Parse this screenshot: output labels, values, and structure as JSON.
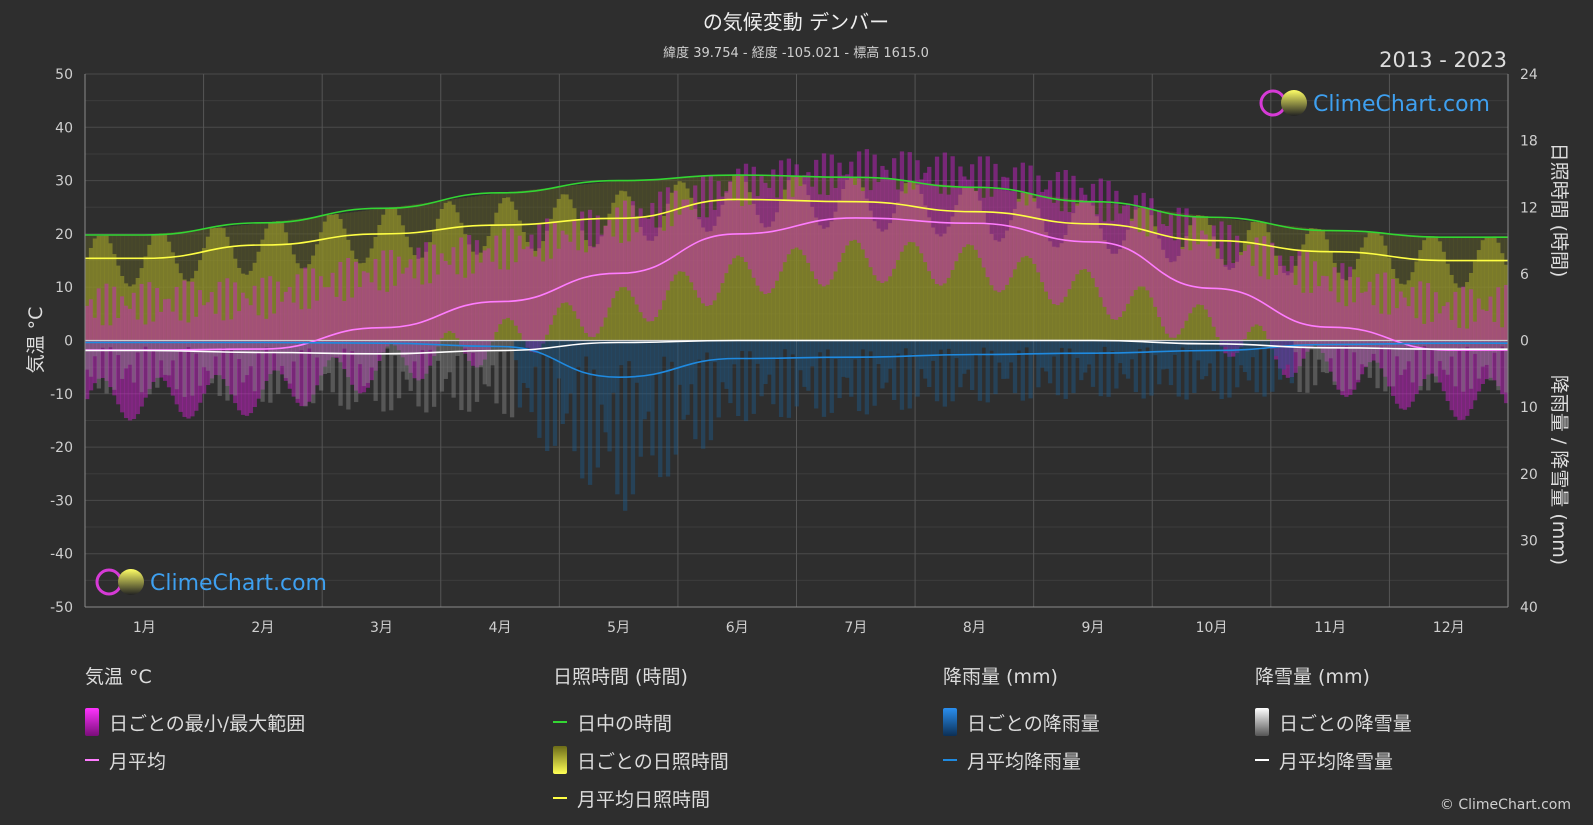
{
  "header": {
    "title": "の気候変動 デンバー",
    "subtitle": "緯度 39.754 - 経度 -105.021 - 標高 1615.0",
    "years": "2013 - 2023"
  },
  "watermark": "ClimeChart.com",
  "copyright": "© ClimeChart.com",
  "colors": {
    "background": "#2e2e2e",
    "temp_range": "#d21ed2",
    "temp_mean": "#ff7cff",
    "daylight": "#33d633",
    "sunshine_fill": "#9e9e2a",
    "sunshine_mean": "#ffff44",
    "rain": "#1f8ae0",
    "rain_mean": "#1f8ae0",
    "snow": "#bdbdbd",
    "snow_mean": "#ffffff",
    "logo_text": "#3ea0f0"
  },
  "legend": {
    "temp": {
      "title": "気温 °C",
      "range_label": "日ごとの最小/最大範囲",
      "mean_label": "月平均"
    },
    "sun": {
      "title": "日照時間 (時間)",
      "daylight_label": "日中の時間",
      "daily_label": "日ごとの日照時間",
      "mean_label": "月平均日照時間"
    },
    "rain": {
      "title": "降雨量 (mm)",
      "daily_label": "日ごとの降雨量",
      "mean_label": "月平均降雨量"
    },
    "snow": {
      "title": "降雪量 (mm)",
      "daily_label": "日ごとの降雪量",
      "mean_label": "月平均降雪量"
    }
  },
  "chart_data": {
    "type": "area",
    "months": [
      "1月",
      "2月",
      "3月",
      "4月",
      "5月",
      "6月",
      "7月",
      "8月",
      "9月",
      "10月",
      "11月",
      "12月"
    ],
    "left_axis": {
      "label": "気温 °C",
      "range": [
        -50,
        50
      ],
      "ticks": [
        50,
        40,
        30,
        20,
        10,
        0,
        -10,
        -20,
        -30,
        -40,
        -50
      ]
    },
    "right_axis_top": {
      "label": "日照時間 (時間)",
      "range": [
        0,
        24
      ],
      "ticks": [
        24,
        18,
        12,
        6,
        0
      ]
    },
    "right_axis_bottom": {
      "label": "降雨量 / 降雪量 (mm)",
      "range": [
        0,
        40
      ],
      "ticks": [
        10,
        20,
        30,
        40
      ]
    },
    "grid": true,
    "series": [
      {
        "name": "日中の時間",
        "axis": "hours",
        "values": [
          9.5,
          10.6,
          11.9,
          13.3,
          14.4,
          14.9,
          14.7,
          13.8,
          12.5,
          11.1,
          9.9,
          9.3
        ]
      },
      {
        "name": "月平均日照時間",
        "axis": "hours",
        "values": [
          7.4,
          8.6,
          9.6,
          10.4,
          11.0,
          12.7,
          12.5,
          11.6,
          10.5,
          9.0,
          8.0,
          7.2
        ]
      },
      {
        "name": "月平均",
        "axis": "temp",
        "values": [
          -1.8,
          -1.6,
          2.4,
          7.3,
          12.6,
          20.0,
          23.0,
          22.0,
          18.5,
          9.8,
          2.5,
          -1.8
        ]
      },
      {
        "name": "月平均降雨量",
        "axis": "precip",
        "values": [
          0.3,
          0.3,
          0.4,
          0.9,
          5.5,
          2.7,
          2.5,
          2.1,
          1.9,
          1.5,
          0.6,
          0.4
        ]
      },
      {
        "name": "月平均降雪量",
        "axis": "precip",
        "values": [
          1.5,
          1.8,
          2.0,
          1.5,
          0.3,
          0.0,
          0.0,
          0.0,
          0.0,
          0.5,
          1.1,
          1.3
        ]
      }
    ],
    "daily_temp_range": {
      "max": [
        7,
        8,
        13,
        17,
        22,
        29,
        32,
        31,
        27,
        19,
        11,
        6
      ],
      "min": [
        -11,
        -10,
        -5,
        0,
        6,
        12,
        15,
        14,
        9,
        2,
        -6,
        -11
      ]
    }
  }
}
